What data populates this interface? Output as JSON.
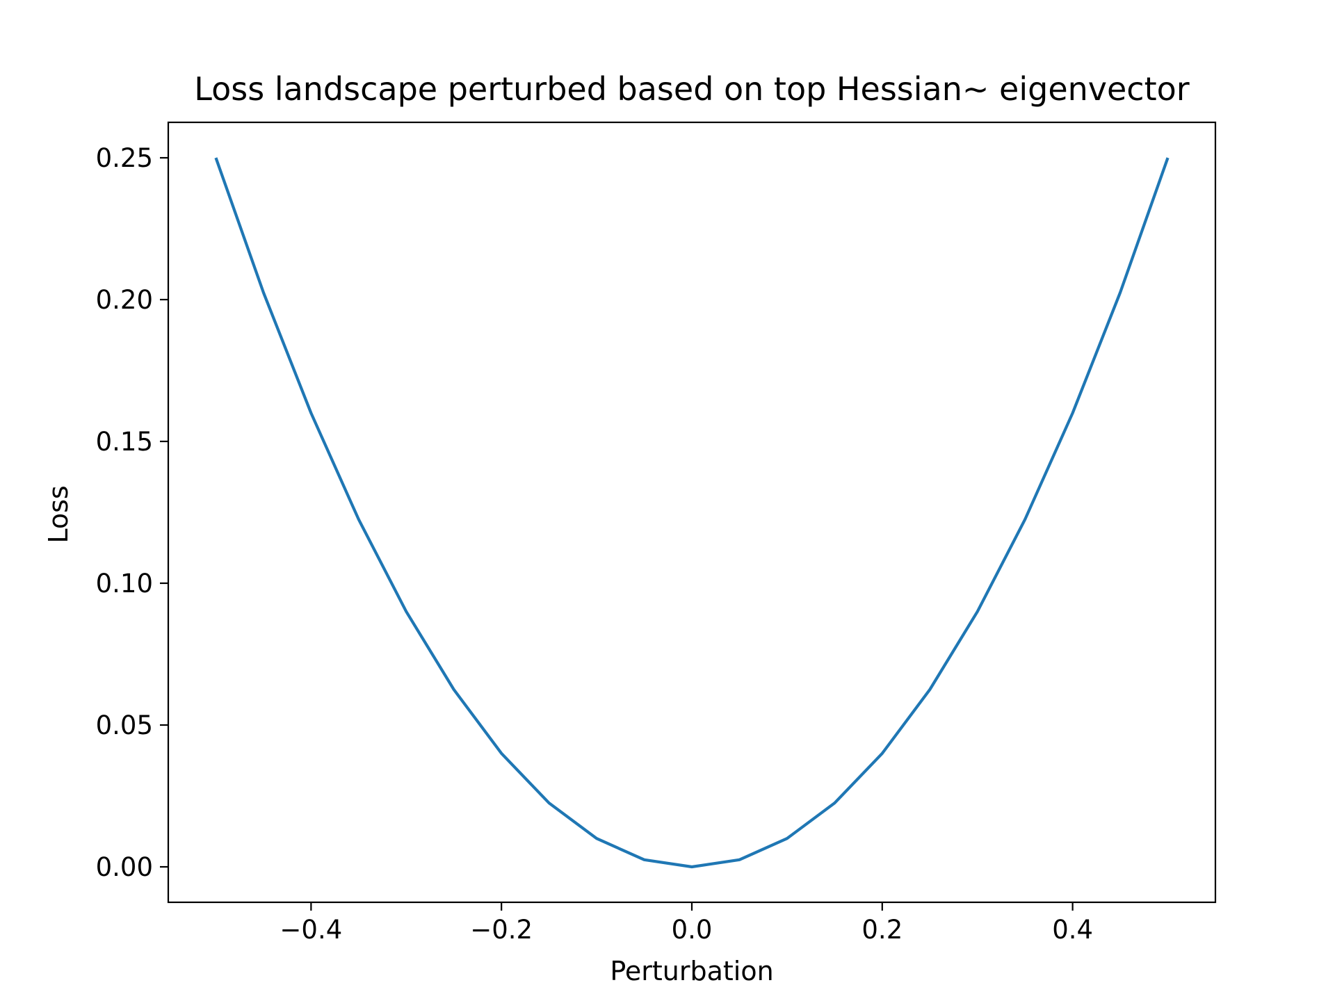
{
  "chart_data": {
    "type": "line",
    "title": "Loss landscape perturbed based on top Hessian~ eigenvector",
    "xlabel": "Perturbation",
    "ylabel": "Loss",
    "xlim": [
      -0.55,
      0.55
    ],
    "ylim": [
      -0.0125,
      0.2625
    ],
    "xticks": [
      -0.4,
      -0.2,
      0.0,
      0.2,
      0.4
    ],
    "xtick_labels": [
      "−0.4",
      "−0.2",
      "0.0",
      "0.2",
      "0.4"
    ],
    "yticks": [
      0.0,
      0.05,
      0.1,
      0.15,
      0.2,
      0.25
    ],
    "ytick_labels": [
      "0.00",
      "0.05",
      "0.10",
      "0.15",
      "0.20",
      "0.25"
    ],
    "grid": false,
    "series": [
      {
        "color": "#1f77b4",
        "x": [
          -0.5,
          -0.45,
          -0.4,
          -0.35,
          -0.3,
          -0.25,
          -0.2,
          -0.15,
          -0.1,
          -0.05,
          0.0,
          0.05,
          0.1,
          0.15,
          0.2,
          0.25,
          0.3,
          0.35,
          0.4,
          0.45,
          0.5
        ],
        "y": [
          0.25,
          0.2025,
          0.16,
          0.1225,
          0.09,
          0.0625,
          0.04,
          0.0225,
          0.01,
          0.0025,
          0.0,
          0.0025,
          0.01,
          0.0225,
          0.04,
          0.0625,
          0.09,
          0.1225,
          0.16,
          0.2025,
          0.25
        ]
      }
    ]
  }
}
